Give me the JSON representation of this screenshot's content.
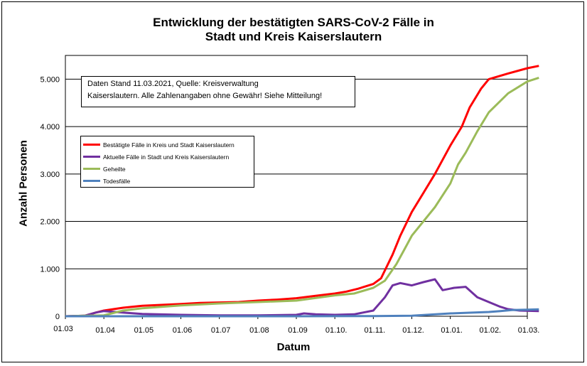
{
  "chart_data": {
    "type": "line",
    "title": "Entwicklung der bestätigten SARS-CoV-2 Fälle in",
    "title_line2": "Stadt und Kreis Kaiserslautern",
    "xlabel": "Datum",
    "ylabel": "Anzahl Personen",
    "note_line1": "Daten Stand 11.03.2021, Quelle: Kreisverwaltung",
    "note_line2": "Kaiserslautern. Alle Zahlenangaben ohne Gewähr! Siehe Mitteilung!",
    "x_ticks": [
      "01.03",
      "01.04",
      "01.05",
      "01.06",
      "01.07",
      "01.08",
      "01.09",
      "01.10.",
      "01.11.",
      "01.12.",
      "01.01.",
      "01.02.",
      "01.03."
    ],
    "y_ticks": [
      "0",
      "1.000",
      "2.000",
      "3.000",
      "4.000",
      "5.000"
    ],
    "ylim": [
      0,
      5500
    ],
    "grid": true,
    "legend_position": "upper-left",
    "series": [
      {
        "name": "Bestätigte Fälle in Kreis und Stadt Kaiserslautern",
        "color": "#ff0000",
        "points": [
          [
            0,
            0
          ],
          [
            0.5,
            10
          ],
          [
            0.8,
            80
          ],
          [
            1,
            120
          ],
          [
            1.5,
            180
          ],
          [
            2,
            220
          ],
          [
            2.5,
            240
          ],
          [
            3,
            260
          ],
          [
            3.5,
            280
          ],
          [
            4,
            290
          ],
          [
            4.5,
            300
          ],
          [
            5,
            330
          ],
          [
            5.5,
            350
          ],
          [
            6,
            380
          ],
          [
            6.5,
            430
          ],
          [
            7,
            480
          ],
          [
            7.3,
            520
          ],
          [
            7.6,
            580
          ],
          [
            8,
            680
          ],
          [
            8.2,
            800
          ],
          [
            8.5,
            1300
          ],
          [
            8.7,
            1700
          ],
          [
            9,
            2200
          ],
          [
            9.3,
            2600
          ],
          [
            9.6,
            3000
          ],
          [
            10,
            3600
          ],
          [
            10.3,
            4000
          ],
          [
            10.5,
            4400
          ],
          [
            10.8,
            4800
          ],
          [
            11,
            5000
          ],
          [
            11.5,
            5120
          ],
          [
            12,
            5230
          ],
          [
            12.3,
            5280
          ]
        ]
      },
      {
        "name": "Aktuelle Fälle in Stadt und Kreis Kaiserslautern",
        "color": "#7030a0",
        "points": [
          [
            0,
            0
          ],
          [
            0.5,
            10
          ],
          [
            0.8,
            80
          ],
          [
            1,
            110
          ],
          [
            1.3,
            90
          ],
          [
            1.6,
            70
          ],
          [
            2,
            50
          ],
          [
            3,
            30
          ],
          [
            4,
            20
          ],
          [
            5,
            20
          ],
          [
            6,
            30
          ],
          [
            6.2,
            60
          ],
          [
            6.5,
            40
          ],
          [
            7,
            30
          ],
          [
            7.5,
            40
          ],
          [
            8,
            120
          ],
          [
            8.3,
            400
          ],
          [
            8.5,
            650
          ],
          [
            8.7,
            700
          ],
          [
            9,
            650
          ],
          [
            9.3,
            720
          ],
          [
            9.6,
            780
          ],
          [
            9.8,
            550
          ],
          [
            10.1,
            600
          ],
          [
            10.4,
            620
          ],
          [
            10.7,
            400
          ],
          [
            11,
            300
          ],
          [
            11.3,
            200
          ],
          [
            11.5,
            150
          ],
          [
            11.8,
            120
          ],
          [
            12.3,
            110
          ]
        ]
      },
      {
        "name": "Geheilte",
        "color": "#9bbb59",
        "points": [
          [
            0,
            0
          ],
          [
            1,
            20
          ],
          [
            1.5,
            120
          ],
          [
            2,
            170
          ],
          [
            3,
            230
          ],
          [
            4,
            270
          ],
          [
            5,
            300
          ],
          [
            6,
            330
          ],
          [
            7,
            440
          ],
          [
            7.5,
            480
          ],
          [
            8,
            600
          ],
          [
            8.3,
            750
          ],
          [
            8.6,
            1100
          ],
          [
            8.8,
            1400
          ],
          [
            9,
            1700
          ],
          [
            9.3,
            2000
          ],
          [
            9.6,
            2300
          ],
          [
            10,
            2800
          ],
          [
            10.2,
            3200
          ],
          [
            10.4,
            3450
          ],
          [
            10.7,
            3900
          ],
          [
            11,
            4300
          ],
          [
            11.5,
            4700
          ],
          [
            12,
            4950
          ],
          [
            12.3,
            5030
          ]
        ]
      },
      {
        "name": "Todesfälle",
        "color": "#4f81bd",
        "points": [
          [
            0,
            0
          ],
          [
            6,
            0
          ],
          [
            8,
            5
          ],
          [
            9,
            10
          ],
          [
            10,
            60
          ],
          [
            10.5,
            75
          ],
          [
            11,
            90
          ],
          [
            11.3,
            110
          ],
          [
            11.6,
            130
          ],
          [
            12,
            140
          ],
          [
            12.3,
            145
          ]
        ]
      }
    ]
  }
}
